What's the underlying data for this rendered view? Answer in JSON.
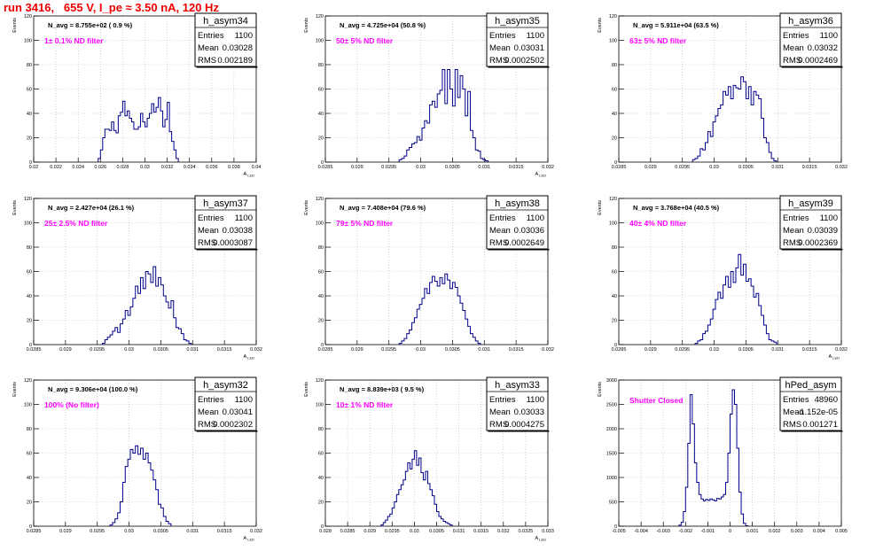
{
  "page_title": "run 3416,   655 V, I_pe ≈ 3.50 nA, 120 Hz",
  "chart_data": [
    {
      "type": "histogram",
      "name": "h_asym34",
      "stats": {
        "entries_label": "Entries",
        "entries": "1100",
        "mean_label": "Mean",
        "mean": "0.03028",
        "rms_label": "RMS",
        "rms": "0.002189"
      },
      "annotation_navg": "N_avg = 8.755e+02 ( 0.9 %)",
      "annotation_filter": "1± 0.1% ND filter",
      "ylabel": "Events",
      "xlabel": "A_{LED}",
      "xlim": [
        0.02,
        0.04
      ],
      "ylim": [
        0,
        120
      ],
      "xticks": [
        0.02,
        0.022,
        0.024,
        0.026,
        0.028,
        0.03,
        0.032,
        0.034,
        0.036,
        0.038,
        0.04
      ],
      "xtick_labels": [
        "0.02",
        "0.022",
        "0.024",
        "0.026",
        "0.028",
        "0.03",
        "0.032",
        "0.034",
        "0.036",
        "0.038",
        "0.04"
      ],
      "yticks": [
        0,
        20,
        40,
        60,
        80,
        100,
        120
      ],
      "ytick_labels": [
        "0",
        "20",
        "40",
        "60",
        "80",
        "100",
        "120"
      ],
      "bins": {
        "start": 0.0258,
        "width": 0.0002,
        "counts": [
          3,
          10,
          20,
          27,
          27,
          26,
          33,
          26,
          24,
          38,
          41,
          50,
          38,
          42,
          36,
          33,
          27,
          27,
          29,
          40,
          33,
          29,
          36,
          40,
          48,
          41,
          45,
          53,
          42,
          29,
          35,
          49,
          25,
          17,
          10,
          3
        ]
      }
    },
    {
      "type": "histogram",
      "name": "h_asym35",
      "stats": {
        "entries_label": "Entries",
        "entries": "1100",
        "mean_label": "Mean",
        "mean": "0.03031",
        "rms_label": "RMS",
        "rms": "0.0002502"
      },
      "annotation_navg": "N_avg = 4.725e+04 (50.8 %)",
      "annotation_filter": "50± 5% ND filter",
      "ylabel": "Events",
      "xlabel": "A_{LED}",
      "xlim": [
        0.0285,
        0.032
      ],
      "ylim": [
        0,
        120
      ],
      "xticks": [
        0.0285,
        0.029,
        0.0295,
        0.03,
        0.0305,
        0.031,
        0.0315,
        0.032
      ],
      "xtick_labels": [
        "0.0285",
        "0.029",
        "0.0295",
        "0.03",
        "0.0305",
        "0.031",
        "0.0315",
        "0.032"
      ],
      "yticks": [
        0,
        20,
        40,
        60,
        80,
        100,
        120
      ],
      "ytick_labels": [
        "0",
        "20",
        "40",
        "60",
        "80",
        "100",
        "120"
      ],
      "bins": {
        "start": 0.02966,
        "width": 4e-05,
        "counts": [
          2,
          3,
          5,
          10,
          12,
          15,
          16,
          21,
          18,
          28,
          34,
          32,
          47,
          50,
          45,
          56,
          59,
          76,
          48,
          76,
          60,
          46,
          76,
          53,
          71,
          60,
          38,
          58,
          26,
          20,
          10,
          9,
          3,
          2,
          1
        ]
      }
    },
    {
      "type": "histogram",
      "name": "h_asym36",
      "stats": {
        "entries_label": "Entries",
        "entries": "1100",
        "mean_label": "Mean",
        "mean": "0.03032",
        "rms_label": "RMS",
        "rms": "0.0002469"
      },
      "annotation_navg": "N_avg = 5.911e+04 (63.5 %)",
      "annotation_filter": "63± 5% ND filter",
      "ylabel": "Events",
      "xlabel": "",
      "xlim": [
        0.0285,
        0.032
      ],
      "ylim": [
        0,
        120
      ],
      "xticks": [
        0.0285,
        0.029,
        0.0295,
        0.03,
        0.0305,
        0.031,
        0.0315,
        0.032
      ],
      "xtick_labels": [
        "0.0285",
        "0.029",
        "0.0295",
        "0.03",
        "0.0305",
        "0.031",
        "0.0315",
        "0.032"
      ],
      "yticks": [
        0,
        20,
        40,
        60,
        80,
        100,
        120
      ],
      "ytick_labels": [
        "0",
        "20",
        "40",
        "60",
        "80",
        "100",
        "120"
      ],
      "bins": {
        "start": 0.02966,
        "width": 4e-05,
        "counts": [
          2,
          3,
          5,
          11,
          10,
          16,
          25,
          21,
          33,
          38,
          44,
          47,
          58,
          55,
          62,
          52,
          63,
          61,
          60,
          70,
          66,
          52,
          62,
          47,
          58,
          55,
          52,
          36,
          20,
          16,
          8,
          3,
          1
        ]
      }
    },
    {
      "type": "histogram",
      "name": "h_asym37",
      "stats": {
        "entries_label": "Entries",
        "entries": "1100",
        "mean_label": "Mean",
        "mean": "0.03038",
        "rms_label": "RMS",
        "rms": "0.0003087"
      },
      "annotation_navg": "N_avg = 2.427e+04 (26.1 %)",
      "annotation_filter": "25± 2.5% ND filter",
      "ylabel": "Events",
      "xlabel": "A_{LED}",
      "xlim": [
        0.0285,
        0.032
      ],
      "ylim": [
        0,
        120
      ],
      "xticks": [
        0.0285,
        0.029,
        0.0295,
        0.03,
        0.0305,
        0.031,
        0.0315,
        0.032
      ],
      "xtick_labels": [
        "0.0285",
        "0.029",
        "0.0295",
        "0.03",
        "0.0305",
        "0.031",
        "0.0315",
        "0.032"
      ],
      "yticks": [
        0,
        20,
        40,
        60,
        80,
        100,
        120
      ],
      "ytick_labels": [
        "0",
        "20",
        "40",
        "60",
        "80",
        "100",
        "120"
      ],
      "bins": {
        "start": 0.02958,
        "width": 4e-05,
        "counts": [
          1,
          4,
          6,
          8,
          11,
          14,
          10,
          17,
          21,
          28,
          24,
          31,
          38,
          48,
          42,
          55,
          46,
          60,
          58,
          51,
          64,
          48,
          55,
          49,
          40,
          35,
          30,
          36,
          22,
          14,
          13,
          9,
          4,
          3,
          1
        ]
      }
    },
    {
      "type": "histogram",
      "name": "h_asym38",
      "stats": {
        "entries_label": "Entries",
        "entries": "1100",
        "mean_label": "Mean",
        "mean": "0.03036",
        "rms_label": "RMS",
        "rms": "0.0002649"
      },
      "annotation_navg": "N_avg = 7.408e+04 (79.6 %)",
      "annotation_filter": "79± 5% ND filter",
      "ylabel": "Events",
      "xlabel": "",
      "xlim": [
        0.0285,
        0.032
      ],
      "ylim": [
        0,
        120
      ],
      "xticks": [
        0.0285,
        0.029,
        0.0295,
        0.03,
        0.0305,
        0.031,
        0.0315,
        0.032
      ],
      "xtick_labels": [
        "0.0285",
        "0.029",
        "0.0295",
        "0.03",
        "0.0305",
        "0.031",
        "0.0315",
        "0.032"
      ],
      "yticks": [
        0,
        20,
        40,
        60,
        80,
        100,
        120
      ],
      "ytick_labels": [
        "0",
        "20",
        "40",
        "60",
        "80",
        "100",
        "120"
      ],
      "bins": {
        "start": 0.02966,
        "width": 4e-05,
        "counts": [
          1,
          3,
          5,
          9,
          12,
          18,
          22,
          29,
          33,
          38,
          46,
          42,
          51,
          56,
          52,
          48,
          55,
          50,
          58,
          53,
          46,
          51,
          47,
          40,
          34,
          28,
          21,
          15,
          9,
          6,
          3,
          1
        ]
      }
    },
    {
      "type": "histogram",
      "name": "h_asym39",
      "stats": {
        "entries_label": "Entries",
        "entries": "1100",
        "mean_label": "Mean",
        "mean": "0.03039",
        "rms_label": "RMS",
        "rms": "0.0002369"
      },
      "annotation_navg": "N_avg = 3.768e+04 (40.5 %)",
      "annotation_filter": "40± 4% ND filter",
      "ylabel": "Events",
      "xlabel": "A_{LED}",
      "xlim": [
        0.0285,
        0.032
      ],
      "ylim": [
        0,
        120
      ],
      "xticks": [
        0.0285,
        0.029,
        0.0295,
        0.03,
        0.0305,
        0.031,
        0.0315,
        0.032
      ],
      "xtick_labels": [
        "0.0285",
        "0.029",
        "0.0295",
        "0.03",
        "0.0305",
        "0.031",
        "0.0315",
        "0.032"
      ],
      "yticks": [
        0,
        20,
        40,
        60,
        80,
        100,
        120
      ],
      "ytick_labels": [
        "0",
        "20",
        "40",
        "60",
        "80",
        "100",
        "120"
      ],
      "bins": {
        "start": 0.0297,
        "width": 4e-05,
        "counts": [
          1,
          3,
          4,
          9,
          11,
          16,
          21,
          29,
          37,
          43,
          38,
          49,
          56,
          47,
          60,
          51,
          63,
          74,
          57,
          66,
          52,
          54,
          48,
          39,
          42,
          32,
          24,
          16,
          9,
          4,
          3,
          2
        ]
      }
    },
    {
      "type": "histogram",
      "name": "h_asym32",
      "stats": {
        "entries_label": "Entries",
        "entries": "1100",
        "mean_label": "Mean",
        "mean": "0.03041",
        "rms_label": "RMS",
        "rms": "0.0002302"
      },
      "annotation_navg": "N_avg = 9.306e+04 (100.0 %)",
      "annotation_filter": "100% (No filter)",
      "ylabel": "Events",
      "xlabel": "A_{LED}",
      "xlim": [
        0.0285,
        0.032
      ],
      "ylim": [
        0,
        120
      ],
      "xticks": [
        0.0285,
        0.029,
        0.0295,
        0.03,
        0.0305,
        0.031,
        0.0315,
        0.032
      ],
      "xtick_labels": [
        "0.0285",
        "0.029",
        "0.0295",
        "0.03",
        "0.0305",
        "0.031",
        "0.0315",
        "0.032"
      ],
      "yticks": [
        0,
        20,
        40,
        60,
        80,
        100,
        120
      ],
      "ytick_labels": [
        "0",
        "20",
        "40",
        "60",
        "80",
        "100",
        "120"
      ],
      "bins": {
        "start": 0.0297,
        "width": 4e-05,
        "counts": [
          1,
          3,
          6,
          11,
          20,
          36,
          49,
          55,
          63,
          60,
          66,
          59,
          64,
          55,
          60,
          52,
          46,
          38,
          30,
          18,
          15,
          8,
          4,
          2
        ]
      }
    },
    {
      "type": "histogram",
      "name": "h_asym33",
      "stats": {
        "entries_label": "Entries",
        "entries": "1100",
        "mean_label": "Mean",
        "mean": "0.03033",
        "rms_label": "RMS",
        "rms": "0.0004275"
      },
      "annotation_navg": "N_avg = 8.839e+03 ( 9.5 %)",
      "annotation_filter": "10± 1% ND filter",
      "ylabel": "Events",
      "xlabel": "A_{LED}",
      "xlim": [
        0.028,
        0.033
      ],
      "ylim": [
        0,
        120
      ],
      "xticks": [
        0.028,
        0.0285,
        0.029,
        0.0295,
        0.03,
        0.0305,
        0.031,
        0.0315,
        0.032,
        0.0325,
        0.033
      ],
      "xtick_labels": [
        "0.028",
        "0.0285",
        "0.029",
        "0.0295",
        "0.03",
        "0.0305",
        "0.031",
        "0.0315",
        "0.032",
        "0.0325",
        "0.033"
      ],
      "yticks": [
        0,
        20,
        40,
        60,
        80,
        100,
        120
      ],
      "ytick_labels": [
        "0",
        "20",
        "40",
        "60",
        "80",
        "100",
        "120"
      ],
      "bins": {
        "start": 0.02925,
        "width": 5e-05,
        "counts": [
          1,
          3,
          5,
          8,
          10,
          15,
          20,
          26,
          30,
          34,
          38,
          45,
          52,
          47,
          55,
          62,
          50,
          56,
          44,
          38,
          45,
          35,
          30,
          25,
          18,
          12,
          8,
          6,
          4,
          3,
          2,
          1
        ]
      }
    },
    {
      "type": "histogram",
      "name": "hPed_asym",
      "stats": {
        "entries_label": "Entries",
        "entries": "48960",
        "mean_label": "Mean",
        "mean": "-1.152e-05",
        "rms_label": "RMS",
        "rms": "0.001271"
      },
      "annotation_navg": "",
      "annotation_filter": "Shutter Closed",
      "ylabel": "Events",
      "xlabel": "",
      "xlim": [
        -0.005,
        0.005
      ],
      "ylim": [
        0,
        3000
      ],
      "xticks": [
        -0.005,
        -0.004,
        -0.003,
        -0.002,
        -0.001,
        0,
        0.001,
        0.002,
        0.003,
        0.004,
        0.005
      ],
      "xtick_labels": [
        "-0.005",
        "-0.004",
        "-0.003",
        "-0.002",
        "-0.001",
        "0",
        "0.001",
        "0.002",
        "0.003",
        "0.004",
        "0.005"
      ],
      "yticks": [
        0,
        500,
        1000,
        1500,
        2000,
        2500,
        3000
      ],
      "ytick_labels": [
        "0",
        "500",
        "1000",
        "1500",
        "2000",
        "2500",
        "3000"
      ],
      "bins": {
        "start": -0.0023,
        "width": 0.0001,
        "counts": [
          20,
          80,
          300,
          800,
          1700,
          2700,
          2100,
          1300,
          900,
          650,
          560,
          520,
          550,
          530,
          560,
          540,
          520,
          570,
          560,
          600,
          650,
          900,
          1500,
          2300,
          2800,
          2500,
          1600,
          700,
          250,
          60,
          10
        ]
      }
    }
  ]
}
